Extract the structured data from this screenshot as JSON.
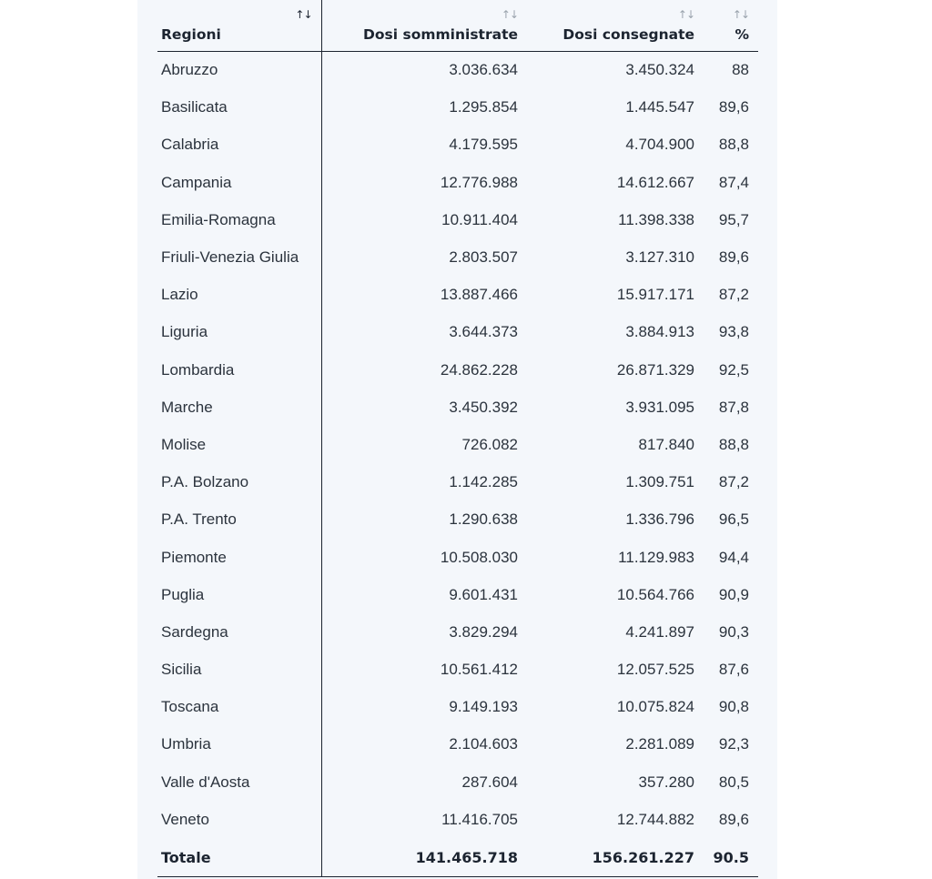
{
  "table": {
    "headers": {
      "region": "Regioni",
      "administered": "Dosi somministrate",
      "delivered": "Dosi consegnate",
      "percent": "%",
      "sort_icon": "↑↓"
    },
    "rows": [
      {
        "region": "Abruzzo",
        "administered": "3.036.634",
        "delivered": "3.450.324",
        "percent": "88"
      },
      {
        "region": "Basilicata",
        "administered": "1.295.854",
        "delivered": "1.445.547",
        "percent": "89,6"
      },
      {
        "region": "Calabria",
        "administered": "4.179.595",
        "delivered": "4.704.900",
        "percent": "88,8"
      },
      {
        "region": "Campania",
        "administered": "12.776.988",
        "delivered": "14.612.667",
        "percent": "87,4"
      },
      {
        "region": "Emilia-Romagna",
        "administered": "10.911.404",
        "delivered": "11.398.338",
        "percent": "95,7"
      },
      {
        "region": "Friuli-Venezia Giulia",
        "administered": "2.803.507",
        "delivered": "3.127.310",
        "percent": "89,6"
      },
      {
        "region": "Lazio",
        "administered": "13.887.466",
        "delivered": "15.917.171",
        "percent": "87,2"
      },
      {
        "region": "Liguria",
        "administered": "3.644.373",
        "delivered": "3.884.913",
        "percent": "93,8"
      },
      {
        "region": "Lombardia",
        "administered": "24.862.228",
        "delivered": "26.871.329",
        "percent": "92,5"
      },
      {
        "region": "Marche",
        "administered": "3.450.392",
        "delivered": "3.931.095",
        "percent": "87,8"
      },
      {
        "region": "Molise",
        "administered": "726.082",
        "delivered": "817.840",
        "percent": "88,8"
      },
      {
        "region": "P.A. Bolzano",
        "administered": "1.142.285",
        "delivered": "1.309.751",
        "percent": "87,2"
      },
      {
        "region": "P.A. Trento",
        "administered": "1.290.638",
        "delivered": "1.336.796",
        "percent": "96,5"
      },
      {
        "region": "Piemonte",
        "administered": "10.508.030",
        "delivered": "11.129.983",
        "percent": "94,4"
      },
      {
        "region": "Puglia",
        "administered": "9.601.431",
        "delivered": "10.564.766",
        "percent": "90,9"
      },
      {
        "region": "Sardegna",
        "administered": "3.829.294",
        "delivered": "4.241.897",
        "percent": "90,3"
      },
      {
        "region": "Sicilia",
        "administered": "10.561.412",
        "delivered": "12.057.525",
        "percent": "87,6"
      },
      {
        "region": "Toscana",
        "administered": "9.149.193",
        "delivered": "10.075.824",
        "percent": "90,8"
      },
      {
        "region": "Umbria",
        "administered": "2.104.603",
        "delivered": "2.281.089",
        "percent": "92,3"
      },
      {
        "region": "Valle d'Aosta",
        "administered": "287.604",
        "delivered": "357.280",
        "percent": "80,5"
      },
      {
        "region": "Veneto",
        "administered": "11.416.705",
        "delivered": "12.744.882",
        "percent": "89,6"
      }
    ],
    "total": {
      "region": "Totale",
      "administered": "141.465.718",
      "delivered": "156.261.227",
      "percent": "90.5"
    }
  }
}
